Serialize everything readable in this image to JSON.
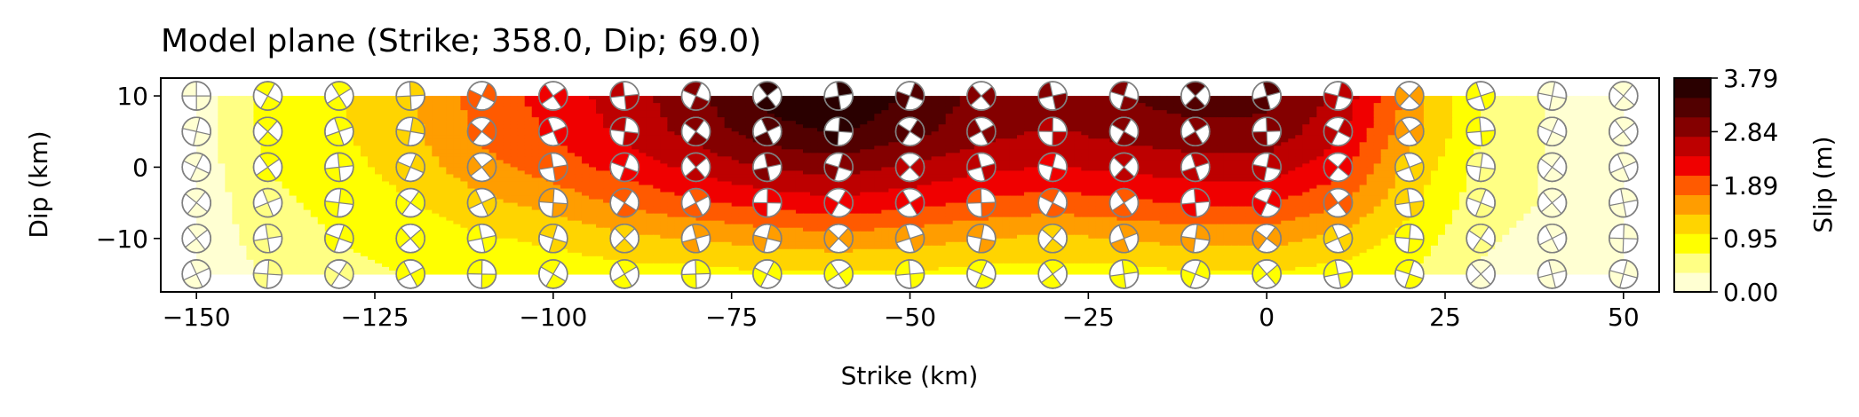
{
  "chart_data": {
    "type": "heatmap",
    "title": "Model plane (Strike; 358.0, Dip; 69.0)",
    "xlabel": "Strike (km)",
    "ylabel": "Dip (km)",
    "xlim": [
      -155,
      55
    ],
    "ylim": [
      -17.5,
      12.5
    ],
    "x_ticks": [
      -150,
      -125,
      -100,
      -75,
      -50,
      -25,
      0,
      25,
      50
    ],
    "x_tick_labels": [
      "−150",
      "−125",
      "−100",
      "−75",
      "−50",
      "−25",
      "0",
      "25",
      "50"
    ],
    "y_ticks": [
      10,
      0,
      -10
    ],
    "y_tick_labels": [
      "10",
      "0",
      "−10"
    ],
    "grid": false,
    "colorbar": {
      "label": "Slip (m)",
      "ticks": [
        0.0,
        0.95,
        1.89,
        2.84,
        3.79
      ],
      "tick_labels": [
        "0.00",
        "0.95",
        "1.89",
        "2.84",
        "3.79"
      ],
      "range": [
        0,
        3.79
      ],
      "colors": [
        "#ffffd2",
        "#ffff84",
        "#ffff00",
        "#ffd400",
        "#ff9d00",
        "#ff5a00",
        "#f00000",
        "#bd0000",
        "#840000",
        "#520000",
        "#2a0000"
      ]
    },
    "slip_field": {
      "x": [
        -150,
        -140,
        -130,
        -120,
        -110,
        -100,
        -90,
        -80,
        -70,
        -60,
        -50,
        -40,
        -30,
        -20,
        -10,
        0,
        10,
        20,
        30,
        40,
        50
      ],
      "y": [
        10,
        5,
        0,
        -5,
        -10,
        -15
      ],
      "slip": [
        [
          0.15,
          0.8,
          1.0,
          1.3,
          1.9,
          2.2,
          2.6,
          3.0,
          3.6,
          3.79,
          3.4,
          3.0,
          2.9,
          3.1,
          3.3,
          3.2,
          2.7,
          1.6,
          0.7,
          0.3,
          0.2
        ],
        [
          0.15,
          0.8,
          1.0,
          1.3,
          1.8,
          2.1,
          2.5,
          2.9,
          3.3,
          3.5,
          3.2,
          2.9,
          2.7,
          2.9,
          3.0,
          3.0,
          2.5,
          1.5,
          0.7,
          0.3,
          0.2
        ],
        [
          0.15,
          0.7,
          0.9,
          1.2,
          1.6,
          1.9,
          2.2,
          2.5,
          2.8,
          2.9,
          2.7,
          2.5,
          2.4,
          2.5,
          2.6,
          2.6,
          2.2,
          1.3,
          0.6,
          0.3,
          0.2
        ],
        [
          0.1,
          0.6,
          0.8,
          1.0,
          1.3,
          1.5,
          1.8,
          2.0,
          2.2,
          2.3,
          2.2,
          2.0,
          1.9,
          2.0,
          2.1,
          2.1,
          1.8,
          1.1,
          0.5,
          0.3,
          0.2
        ],
        [
          0.1,
          0.5,
          0.7,
          0.8,
          1.0,
          1.1,
          1.3,
          1.4,
          1.5,
          1.6,
          1.5,
          1.4,
          1.3,
          1.4,
          1.5,
          1.5,
          1.3,
          0.9,
          0.4,
          0.2,
          0.1
        ],
        [
          0.05,
          0.4,
          0.6,
          0.7,
          0.8,
          0.8,
          0.9,
          0.9,
          1.0,
          1.0,
          1.0,
          0.9,
          0.9,
          0.9,
          1.0,
          1.0,
          0.9,
          0.7,
          0.3,
          0.2,
          0.1
        ]
      ]
    },
    "beachballs": {
      "x": [
        -150,
        -140,
        -130,
        -120,
        -110,
        -100,
        -90,
        -80,
        -70,
        -60,
        -50,
        -40,
        -30,
        -20,
        -10,
        0,
        10,
        20,
        30,
        40,
        50
      ],
      "y": [
        10,
        5,
        0,
        -5,
        -10,
        -15
      ]
    }
  }
}
